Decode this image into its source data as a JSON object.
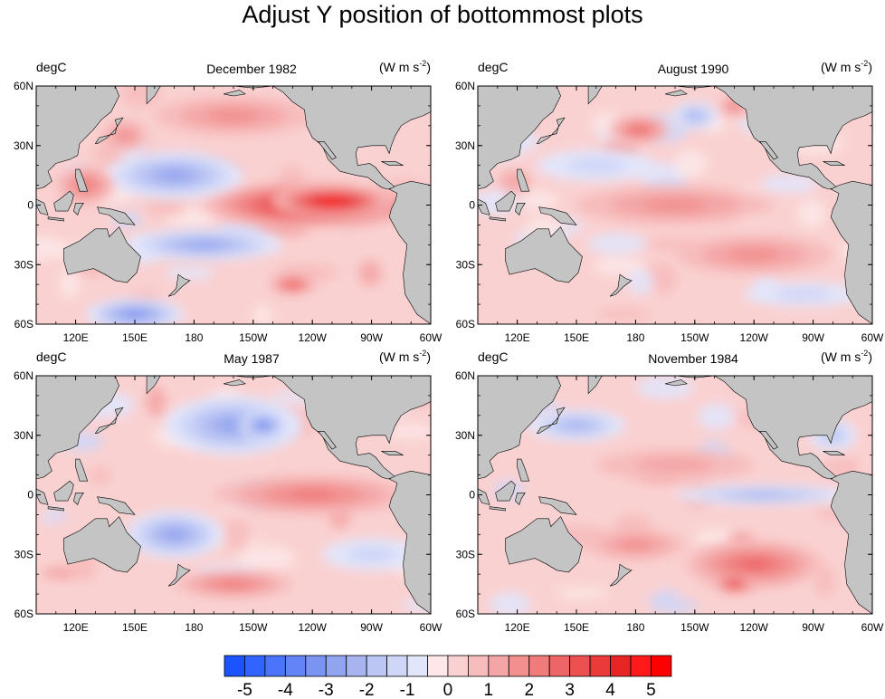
{
  "title": "Adjust Y position of bottommost plots",
  "chart_data": {
    "type": "heatmap",
    "title": "Adjust Y position of bottommost plots",
    "panels": [
      {
        "id": "tl",
        "title": "December 1982",
        "left_label": "degC",
        "right_label_base": "(W m s",
        "right_label_sup": "-2",
        "right_label_close": ")",
        "xticks": [
          "120E",
          "150E",
          "180",
          "150W",
          "120W",
          "90W",
          "60W"
        ],
        "yticks": [
          "60N",
          "30N",
          "0",
          "30S",
          "60S"
        ],
        "lon_range": [
          100,
          300
        ],
        "lat_range": [
          -60,
          60
        ],
        "features": [
          {
            "lon": 240,
            "lat": 0,
            "rx": 55,
            "ry": 12,
            "val": 4.5
          },
          {
            "lon": 250,
            "lat": 2,
            "rx": 30,
            "ry": 8,
            "val": 5.0
          },
          {
            "lon": 170,
            "lat": 15,
            "rx": 35,
            "ry": 12,
            "val": -2.5
          },
          {
            "lon": 185,
            "lat": -20,
            "rx": 40,
            "ry": 8,
            "val": -2.5
          },
          {
            "lon": 230,
            "lat": -40,
            "rx": 12,
            "ry": 5,
            "val": 3.0
          },
          {
            "lon": 150,
            "lat": -55,
            "rx": 25,
            "ry": 8,
            "val": -3.0
          },
          {
            "lon": 125,
            "lat": 10,
            "rx": 15,
            "ry": 10,
            "val": 2.0
          },
          {
            "lon": 200,
            "lat": 45,
            "rx": 40,
            "ry": 10,
            "val": 1.5
          },
          {
            "lon": 145,
            "lat": 35,
            "rx": 12,
            "ry": 8,
            "val": 1.5
          }
        ]
      },
      {
        "id": "tr",
        "title": "August 1990",
        "left_label": "degC",
        "right_label_base": "(W m s",
        "right_label_sup": "-2",
        "right_label_close": ")",
        "xticks": [
          "120E",
          "150E",
          "180",
          "150W",
          "120W",
          "90W",
          "60W"
        ],
        "yticks": [
          "60N",
          "30N",
          "0",
          "30S",
          "60S"
        ],
        "lon_range": [
          100,
          300
        ],
        "lat_range": [
          -60,
          60
        ],
        "features": [
          {
            "lon": 182,
            "lat": 38,
            "rx": 15,
            "ry": 7,
            "val": 2.5
          },
          {
            "lon": 210,
            "lat": 45,
            "rx": 12,
            "ry": 7,
            "val": -2.0
          },
          {
            "lon": 230,
            "lat": 50,
            "rx": 8,
            "ry": 5,
            "val": 2.0
          },
          {
            "lon": 200,
            "lat": 0,
            "rx": 50,
            "ry": 10,
            "val": 1.5
          },
          {
            "lon": 240,
            "lat": -25,
            "rx": 40,
            "ry": 10,
            "val": 1.5
          },
          {
            "lon": 160,
            "lat": 20,
            "rx": 30,
            "ry": 8,
            "val": -1.0
          },
          {
            "lon": 265,
            "lat": -45,
            "rx": 30,
            "ry": 6,
            "val": -1.0
          }
        ]
      },
      {
        "id": "bl",
        "title": "May 1987",
        "left_label": "degC",
        "right_label_base": "(W m s",
        "right_label_sup": "-2",
        "right_label_close": ")",
        "xticks": [
          "120E",
          "150E",
          "180",
          "150W",
          "120W",
          "90W",
          "60W"
        ],
        "yticks": [
          "60N",
          "30N",
          "0",
          "30S",
          "60S"
        ],
        "lon_range": [
          100,
          300
        ],
        "lat_range": [
          -60,
          60
        ],
        "features": [
          {
            "lon": 200,
            "lat": 35,
            "rx": 35,
            "ry": 15,
            "val": -2.5
          },
          {
            "lon": 215,
            "lat": 35,
            "rx": 12,
            "ry": 7,
            "val": -3.5
          },
          {
            "lon": 170,
            "lat": -20,
            "rx": 25,
            "ry": 12,
            "val": -2.5
          },
          {
            "lon": 240,
            "lat": 0,
            "rx": 50,
            "ry": 10,
            "val": 2.0
          },
          {
            "lon": 200,
            "lat": -45,
            "rx": 30,
            "ry": 7,
            "val": 2.0
          },
          {
            "lon": 270,
            "lat": -30,
            "rx": 25,
            "ry": 8,
            "val": -1.0
          },
          {
            "lon": 125,
            "lat": 55,
            "rx": 12,
            "ry": 6,
            "val": -2.0
          }
        ]
      },
      {
        "id": "br",
        "title": "November 1984",
        "left_label": "degC",
        "right_label_base": "(W m s",
        "right_label_sup": "-2",
        "right_label_close": ")",
        "xticks": [
          "120E",
          "150E",
          "180",
          "150W",
          "120W",
          "90W",
          "60W"
        ],
        "yticks": [
          "60N",
          "30N",
          "0",
          "30S",
          "60S"
        ],
        "lon_range": [
          100,
          300
        ],
        "lat_range": [
          -60,
          60
        ],
        "features": [
          {
            "lon": 245,
            "lat": 0,
            "rx": 45,
            "ry": 5,
            "val": -2.0
          },
          {
            "lon": 150,
            "lat": 35,
            "rx": 25,
            "ry": 8,
            "val": -2.0
          },
          {
            "lon": 240,
            "lat": -35,
            "rx": 35,
            "ry": 12,
            "val": 2.5
          },
          {
            "lon": 230,
            "lat": -45,
            "rx": 10,
            "ry": 5,
            "val": 3.5
          },
          {
            "lon": 200,
            "lat": 15,
            "rx": 40,
            "ry": 8,
            "val": 1.0
          },
          {
            "lon": 280,
            "lat": 30,
            "rx": 12,
            "ry": 8,
            "val": -1.5
          },
          {
            "lon": 180,
            "lat": -25,
            "rx": 25,
            "ry": 8,
            "val": 1.5
          }
        ]
      }
    ],
    "colorbar": {
      "levels": [
        -5,
        -4.5,
        -4,
        -3.5,
        -3,
        -2.5,
        -2,
        -1.5,
        -1,
        -0.5,
        0,
        0.5,
        1,
        1.5,
        2,
        2.5,
        3,
        3.5,
        4,
        4.5,
        5
      ],
      "labels": [
        "-5",
        "-4",
        "-3",
        "-2",
        "-1",
        "0",
        "1",
        "2",
        "3",
        "4",
        "5"
      ],
      "colors": [
        "#1a53ff",
        "#3164fc",
        "#4a74f9",
        "#6284f6",
        "#7994f3",
        "#90a4f0",
        "#a8b4f0",
        "#bcc6f4",
        "#cfd6f7",
        "#e2e6fb",
        "#fde7e7",
        "#fad1d1",
        "#f7bcbc",
        "#f4a6a6",
        "#f29090",
        "#f07b7b",
        "#ee6565",
        "#ec5050",
        "#ea3a3a",
        "#e82525",
        "#ff1a1a",
        "#ff0000"
      ],
      "label_step": 1
    },
    "land_color": "#c4c4c4",
    "missing_color": "#ffffff"
  }
}
